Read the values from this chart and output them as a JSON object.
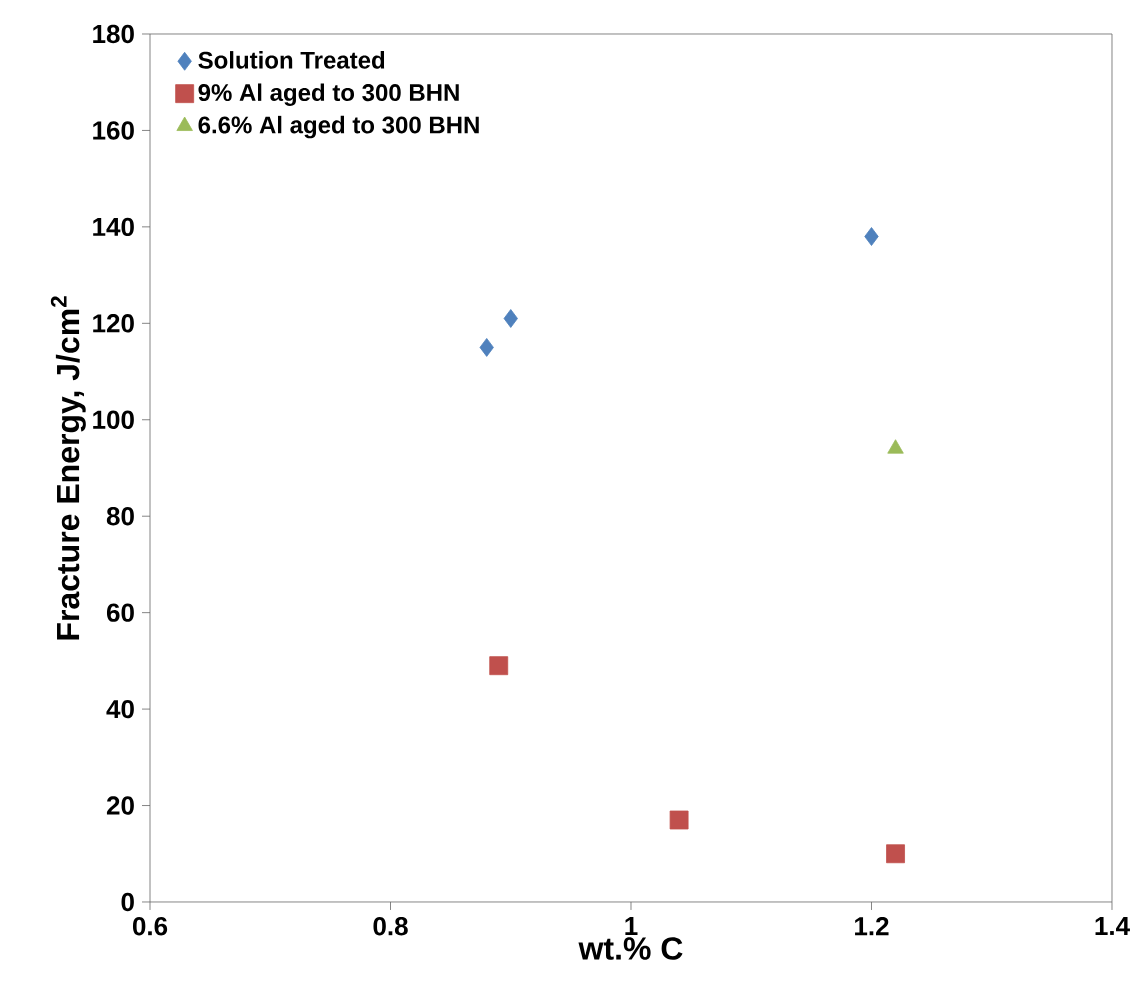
{
  "chart_data": {
    "type": "scatter",
    "xlabel": "wt.% C",
    "ylabel": "Fracture Energy, J/cm$^{2}$",
    "xlim": [
      0.6,
      1.4
    ],
    "xticks": [
      0.6,
      0.8,
      1,
      1.2,
      1.4
    ],
    "ylim": [
      0,
      180
    ],
    "yticks": [
      0,
      20,
      40,
      60,
      80,
      100,
      120,
      140,
      160,
      180
    ],
    "grid": false,
    "legend": "top left",
    "series": [
      {
        "name": "Solution Treated",
        "color": "#4f81bd",
        "marker": "diamond",
        "x": [
          0.88,
          0.9,
          1.2
        ],
        "values": [
          115,
          121,
          138
        ]
      },
      {
        "name": "9% Al aged to 300 BHN",
        "color": "#c0504d",
        "marker": "square",
        "x": [
          0.89,
          1.04,
          1.22
        ],
        "values": [
          49,
          17,
          10
        ]
      },
      {
        "name": "6.6% Al aged to 300 BHN",
        "color": "#9bbb59",
        "marker": "triangle",
        "x": [
          1.22
        ],
        "values": [
          94
        ]
      }
    ]
  }
}
